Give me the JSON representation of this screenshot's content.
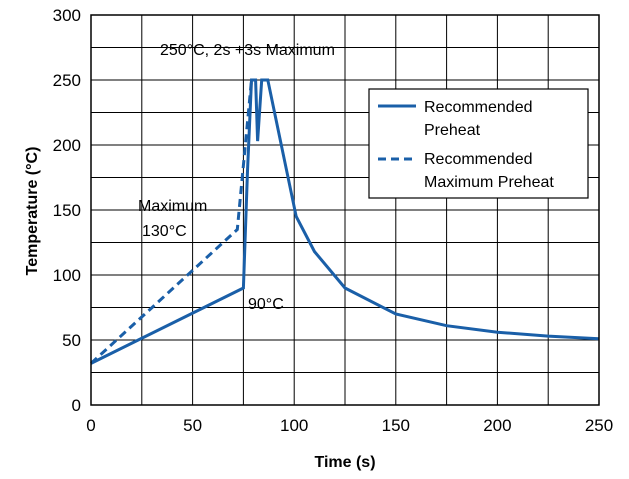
{
  "chart_data": {
    "type": "line",
    "xlabel": "Time (s)",
    "ylabel": "Temperature (°C)",
    "xlim": [
      0,
      250
    ],
    "ylim": [
      0,
      300
    ],
    "xticks": [
      0,
      50,
      100,
      150,
      200,
      250
    ],
    "yticks": [
      0,
      50,
      100,
      150,
      200,
      250,
      300
    ],
    "grid": true,
    "legend_position": "top-right",
    "line_color": "#1a5fa8",
    "series": [
      {
        "name": "Recommended Preheat",
        "style": "solid",
        "points": [
          [
            0,
            32
          ],
          [
            75,
            90
          ],
          [
            75,
            90
          ],
          [
            77,
            180
          ],
          [
            79,
            250
          ],
          [
            81,
            250
          ],
          [
            82,
            203
          ],
          [
            84,
            250
          ],
          [
            87,
            250
          ],
          [
            95,
            190
          ],
          [
            101,
            145
          ],
          [
            110,
            118
          ],
          [
            125,
            90
          ],
          [
            150,
            70
          ],
          [
            175,
            61
          ],
          [
            200,
            56
          ],
          [
            225,
            53
          ],
          [
            250,
            51
          ]
        ]
      },
      {
        "name": "Recommended Maximum Preheat",
        "style": "dashed",
        "points": [
          [
            0,
            32
          ],
          [
            72,
            135
          ],
          [
            79,
            250
          ]
        ]
      }
    ],
    "annotations": [
      {
        "text": "250°C, 2s +3s Maximum"
      },
      {
        "text": "Maximum"
      },
      {
        "text": "130°C"
      },
      {
        "text": "90°C"
      }
    ],
    "legend": [
      {
        "line1": "Recommended",
        "line2": "Preheat"
      },
      {
        "line1": "Recommended",
        "line2": "Maximum Preheat"
      }
    ]
  }
}
